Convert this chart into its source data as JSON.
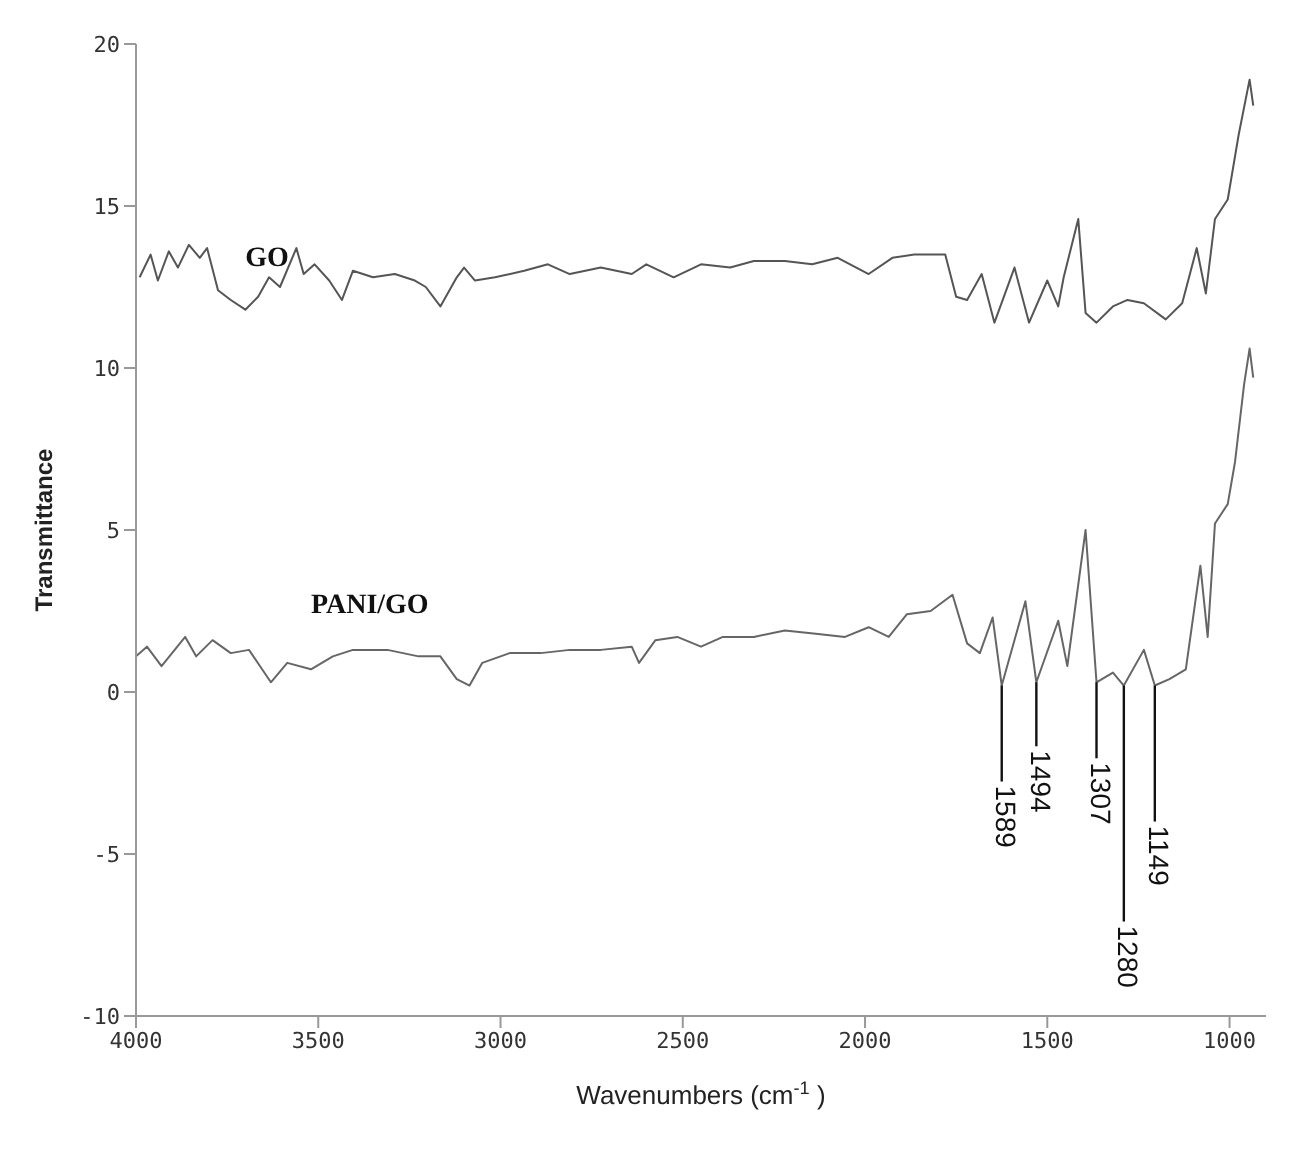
{
  "chart_data": {
    "type": "line",
    "xlabel": "Wavenumbers (cm$^{-1}$)",
    "ylabel": "Transmittance",
    "xlim": [
      4000,
      900
    ],
    "xticks": [
      4000,
      3500,
      3000,
      2500,
      2000,
      1500,
      1000
    ],
    "ylim": [
      -10,
      20
    ],
    "yticks": [
      -10,
      -5,
      0,
      5,
      10,
      15,
      20
    ],
    "marker": "none",
    "line_style": "solid",
    "series": [
      {
        "name": "GO",
        "color": "#555555",
        "x": [
          3990,
          3960,
          3940,
          3910,
          3885,
          3855,
          3825,
          3805,
          3775,
          3740,
          3700,
          3665,
          3635,
          3605,
          3560,
          3540,
          3510,
          3470,
          3435,
          3405,
          3350,
          3290,
          3235,
          3205,
          3165,
          3120,
          3100,
          3070,
          3015,
          2935,
          2870,
          2810,
          2725,
          2640,
          2600,
          2525,
          2450,
          2370,
          2305,
          2220,
          2145,
          2075,
          1990,
          1925,
          1865,
          1780,
          1750,
          1720,
          1680,
          1645,
          1590,
          1550,
          1500,
          1470,
          1455,
          1415,
          1395,
          1365,
          1320,
          1280,
          1235,
          1175,
          1130,
          1090,
          1065,
          1040,
          1005,
          975,
          945,
          935
        ],
        "values": [
          12.8,
          13.5,
          12.7,
          13.6,
          13.1,
          13.8,
          13.4,
          13.7,
          12.4,
          12.1,
          11.8,
          12.2,
          12.8,
          12.5,
          13.7,
          12.9,
          13.2,
          12.7,
          12.1,
          13.0,
          12.8,
          12.9,
          12.7,
          12.5,
          11.9,
          12.8,
          13.1,
          12.7,
          12.8,
          13.0,
          13.2,
          12.9,
          13.1,
          12.9,
          13.2,
          12.8,
          13.2,
          13.1,
          13.3,
          13.3,
          13.2,
          13.4,
          12.9,
          13.4,
          13.5,
          13.5,
          12.2,
          12.1,
          12.9,
          11.4,
          13.1,
          11.4,
          12.7,
          11.9,
          12.8,
          14.6,
          11.7,
          11.4,
          11.9,
          12.1,
          12.0,
          11.5,
          12.0,
          13.7,
          12.3,
          14.6,
          15.2,
          17.2,
          18.9,
          18.1
        ]
      },
      {
        "name": "PANI/GO",
        "color": "#666666",
        "x": [
          4000,
          3970,
          3930,
          3865,
          3835,
          3790,
          3740,
          3690,
          3630,
          3585,
          3520,
          3460,
          3405,
          3310,
          3225,
          3165,
          3120,
          3085,
          3050,
          2975,
          2890,
          2810,
          2725,
          2640,
          2620,
          2575,
          2515,
          2450,
          2390,
          2305,
          2220,
          2135,
          2055,
          1990,
          1935,
          1885,
          1820,
          1760,
          1720,
          1685,
          1650,
          1625,
          1560,
          1530,
          1470,
          1445,
          1395,
          1365,
          1320,
          1290,
          1235,
          1205,
          1165,
          1120,
          1080,
          1060,
          1040,
          1005,
          985,
          960,
          945,
          935
        ],
        "values": [
          1.1,
          1.4,
          0.8,
          1.7,
          1.1,
          1.6,
          1.2,
          1.3,
          0.3,
          0.9,
          0.7,
          1.1,
          1.3,
          1.3,
          1.1,
          1.1,
          0.4,
          0.2,
          0.9,
          1.2,
          1.2,
          1.3,
          1.3,
          1.4,
          0.9,
          1.6,
          1.7,
          1.4,
          1.7,
          1.7,
          1.9,
          1.8,
          1.7,
          2.0,
          1.7,
          2.4,
          2.5,
          3.0,
          1.5,
          1.2,
          2.3,
          0.2,
          2.8,
          0.3,
          2.2,
          0.8,
          5.0,
          0.3,
          0.6,
          0.2,
          1.3,
          0.2,
          0.4,
          0.7,
          3.9,
          1.7,
          5.2,
          5.8,
          7.1,
          9.5,
          10.6,
          9.7
        ]
      }
    ],
    "annotations": [
      {
        "text": "1589",
        "x": 1625,
        "y": 0.2
      },
      {
        "text": "1494",
        "x": 1530,
        "y": 0.3
      },
      {
        "text": "1307",
        "x": 1365,
        "y": 0.3
      },
      {
        "text": "1280",
        "x": 1290,
        "y": 0.2
      },
      {
        "text": "1149",
        "x": 1205,
        "y": 0.2
      }
    ]
  }
}
